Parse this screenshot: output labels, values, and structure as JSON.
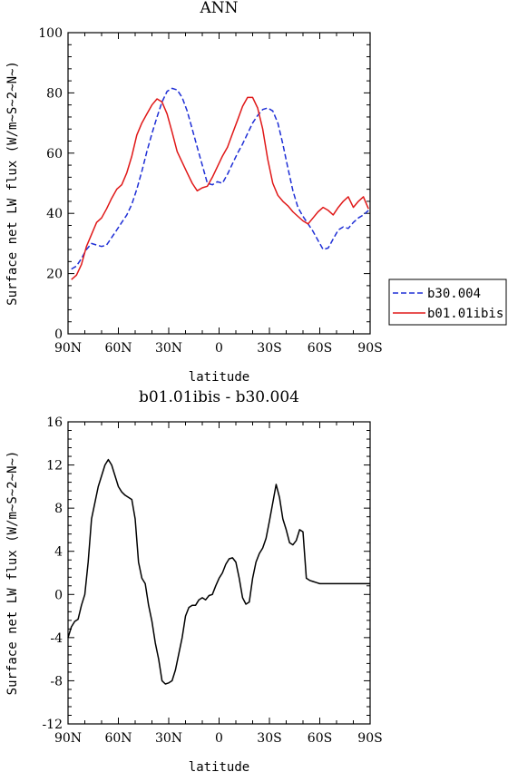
{
  "chart_data": [
    {
      "type": "line",
      "title": "ANN",
      "xlabel": "latitude",
      "ylabel": "Surface net LW flux (W/m~S~2~N~)",
      "xlim": [
        -90,
        90
      ],
      "ylim": [
        0,
        100
      ],
      "x_ticks": [
        {
          "value": -90,
          "label": "90N"
        },
        {
          "value": -60,
          "label": "60N"
        },
        {
          "value": -30,
          "label": "30N"
        },
        {
          "value": 0,
          "label": "0"
        },
        {
          "value": 30,
          "label": "30S"
        },
        {
          "value": 60,
          "label": "60S"
        },
        {
          "value": 90,
          "label": "90S"
        }
      ],
      "y_ticks": [
        0,
        20,
        40,
        60,
        80,
        100
      ],
      "legend_position": "right",
      "series": [
        {
          "name": "b30.004",
          "color": "#1f2fd6",
          "dash": "dashed",
          "x": [
            -88,
            -85,
            -82,
            -79,
            -76,
            -73,
            -70,
            -67,
            -64,
            -61,
            -58,
            -55,
            -52,
            -49,
            -46,
            -43,
            -40,
            -37,
            -34,
            -31,
            -28,
            -25,
            -22,
            -19,
            -16,
            -13,
            -10,
            -7,
            -4,
            -1,
            2,
            5,
            8,
            11,
            14,
            17,
            20,
            23,
            26,
            29,
            32,
            35,
            38,
            41,
            44,
            47,
            50,
            53,
            56,
            59,
            62,
            65,
            68,
            71,
            74,
            77,
            80,
            83,
            86,
            89
          ],
          "y": [
            21.5,
            22.5,
            25.0,
            28.0,
            30.0,
            29.5,
            29.0,
            29.5,
            32.0,
            34.5,
            37.0,
            39.5,
            43.0,
            48.0,
            54.0,
            60.5,
            66.5,
            72.0,
            77.0,
            80.5,
            81.5,
            81.0,
            78.5,
            74.0,
            68.0,
            62.0,
            56.0,
            50.0,
            49.5,
            50.5,
            50.0,
            53.0,
            56.5,
            60.0,
            63.0,
            66.5,
            70.0,
            72.5,
            74.5,
            75.0,
            74.0,
            70.0,
            63.0,
            55.0,
            47.5,
            42.0,
            39.0,
            36.5,
            34.0,
            31.0,
            28.0,
            28.5,
            31.5,
            34.5,
            35.5,
            35.0,
            37.0,
            38.5,
            39.5,
            41.0
          ]
        },
        {
          "name": "b01.01ibis",
          "color": "#e01818",
          "dash": "solid",
          "x": [
            -88,
            -85,
            -82,
            -79,
            -76,
            -73,
            -70,
            -67,
            -64,
            -61,
            -58,
            -55,
            -52,
            -49,
            -46,
            -43,
            -40,
            -37,
            -34,
            -31,
            -28,
            -25,
            -22,
            -19,
            -16,
            -13,
            -10,
            -7,
            -4,
            -1,
            2,
            5,
            8,
            11,
            14,
            17,
            20,
            23,
            26,
            29,
            32,
            35,
            38,
            41,
            44,
            47,
            50,
            53,
            56,
            59,
            62,
            65,
            68,
            71,
            74,
            77,
            80,
            83,
            86,
            89
          ],
          "y": [
            18.0,
            19.5,
            23.0,
            29.0,
            33.0,
            37.0,
            38.5,
            41.5,
            45.0,
            48.0,
            49.5,
            53.5,
            59.0,
            66.0,
            70.0,
            73.0,
            76.0,
            78.0,
            77.0,
            73.0,
            67.0,
            60.5,
            57.0,
            53.5,
            50.0,
            47.5,
            48.5,
            49.0,
            52.0,
            55.5,
            59.0,
            62.0,
            66.5,
            71.0,
            75.5,
            78.5,
            78.5,
            75.0,
            68.0,
            58.0,
            50.0,
            46.0,
            44.0,
            42.5,
            40.5,
            39.0,
            37.5,
            36.5,
            38.5,
            40.5,
            42.0,
            41.0,
            39.5,
            42.0,
            44.0,
            45.5,
            42.0,
            44.0,
            45.5,
            41.5
          ]
        }
      ]
    },
    {
      "type": "line",
      "title": "b01.01ibis - b30.004",
      "xlabel": "latitude",
      "ylabel": "Surface net LW flux (W/m~S~2~N~)",
      "xlim": [
        -90,
        90
      ],
      "ylim": [
        -12,
        16
      ],
      "x_ticks": [
        {
          "value": -90,
          "label": "90N"
        },
        {
          "value": -60,
          "label": "60N"
        },
        {
          "value": -30,
          "label": "30N"
        },
        {
          "value": 0,
          "label": "0"
        },
        {
          "value": 30,
          "label": "30S"
        },
        {
          "value": 60,
          "label": "60S"
        },
        {
          "value": 90,
          "label": "90S"
        }
      ],
      "y_ticks": [
        -12,
        -8,
        -4,
        0,
        4,
        8,
        12,
        16
      ],
      "series": [
        {
          "color": "#000000",
          "dash": "solid",
          "x": [
            -90,
            -88,
            -86,
            -84,
            -82,
            -80,
            -78,
            -76,
            -74,
            -72,
            -70,
            -68,
            -66,
            -64,
            -62,
            -60,
            -58,
            -56,
            -54,
            -52,
            -50,
            -48,
            -46,
            -44,
            -42,
            -40,
            -38,
            -36,
            -34,
            -32,
            -30,
            -28,
            -26,
            -24,
            -22,
            -20,
            -18,
            -16,
            -14,
            -12,
            -10,
            -8,
            -6,
            -4,
            -2,
            0,
            2,
            4,
            6,
            8,
            10,
            12,
            14,
            16,
            18,
            20,
            22,
            24,
            26,
            28,
            30,
            32,
            34,
            36,
            38,
            40,
            42,
            44,
            46,
            48,
            50,
            52,
            54,
            56,
            58,
            60,
            62,
            64,
            66,
            68,
            70,
            72,
            74,
            76,
            78,
            80,
            82,
            84,
            86,
            88,
            90
          ],
          "y": [
            -4.0,
            -3.0,
            -2.5,
            -2.3,
            -1.0,
            0.0,
            3.0,
            7.0,
            8.5,
            10.0,
            11.0,
            12.0,
            12.5,
            12.0,
            11.0,
            10.0,
            9.5,
            9.2,
            9.0,
            8.8,
            7.0,
            3.0,
            1.5,
            1.0,
            -1.0,
            -2.5,
            -4.5,
            -6.0,
            -8.0,
            -8.3,
            -8.2,
            -8.0,
            -7.0,
            -5.5,
            -4.0,
            -2.0,
            -1.2,
            -1.0,
            -1.0,
            -0.5,
            -0.3,
            -0.5,
            -0.1,
            0.0,
            0.8,
            1.5,
            2.0,
            2.8,
            3.3,
            3.4,
            3.0,
            1.5,
            -0.3,
            -0.9,
            -0.7,
            1.5,
            3.0,
            3.8,
            4.3,
            5.2,
            6.8,
            8.5,
            10.2,
            9.0,
            7.0,
            6.0,
            4.8,
            4.6,
            5.0,
            6.0,
            5.8,
            1.5,
            1.3,
            1.2,
            1.1,
            1.0,
            1.0,
            1.0,
            1.0,
            1.0,
            1.0,
            1.0,
            1.0,
            1.0,
            1.0,
            1.0,
            1.0,
            1.0,
            1.0,
            1.0,
            1.0
          ]
        }
      ]
    }
  ]
}
